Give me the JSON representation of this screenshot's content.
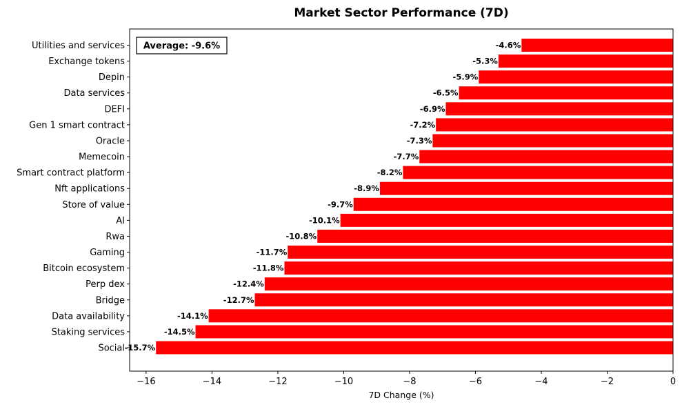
{
  "chart_data": {
    "type": "bar",
    "orientation": "horizontal",
    "title": "Market Sector Performance (7D)",
    "xlabel": "7D Change (%)",
    "ylabel": "",
    "xlim": [
      -16.5,
      0
    ],
    "xticks": [
      -16,
      -14,
      -12,
      -10,
      -8,
      -6,
      -4,
      -2,
      0
    ],
    "xtick_labels": [
      "−16",
      "−14",
      "−12",
      "−10",
      "−8",
      "−6",
      "−4",
      "−2",
      "0"
    ],
    "bar_color": "#ff0000",
    "grid": false,
    "legend": "none",
    "annotation": "Average: -9.6%",
    "categories": [
      "Utilities and services",
      "Exchange tokens",
      "Depin",
      "Data services",
      "DEFI",
      "Gen 1 smart contract",
      "Oracle",
      "Memecoin",
      "Smart contract platform",
      "Nft applications",
      "Store of value",
      "AI",
      "Rwa",
      "Gaming",
      "Bitcoin ecosystem",
      "Perp dex",
      "Bridge",
      "Data availability",
      "Staking services",
      "Social"
    ],
    "values": [
      -4.6,
      -5.3,
      -5.9,
      -6.5,
      -6.9,
      -7.2,
      -7.3,
      -7.7,
      -8.2,
      -8.9,
      -9.7,
      -10.1,
      -10.8,
      -11.7,
      -11.8,
      -12.4,
      -12.7,
      -14.1,
      -14.5,
      -15.7
    ],
    "value_labels": [
      "-4.6%",
      "-5.3%",
      "-5.9%",
      "-6.5%",
      "-6.9%",
      "-7.2%",
      "-7.3%",
      "-7.7%",
      "-8.2%",
      "-8.9%",
      "-9.7%",
      "-10.1%",
      "-10.8%",
      "-11.7%",
      "-11.8%",
      "-12.4%",
      "-12.7%",
      "-14.1%",
      "-14.5%",
      "-15.7%"
    ]
  }
}
